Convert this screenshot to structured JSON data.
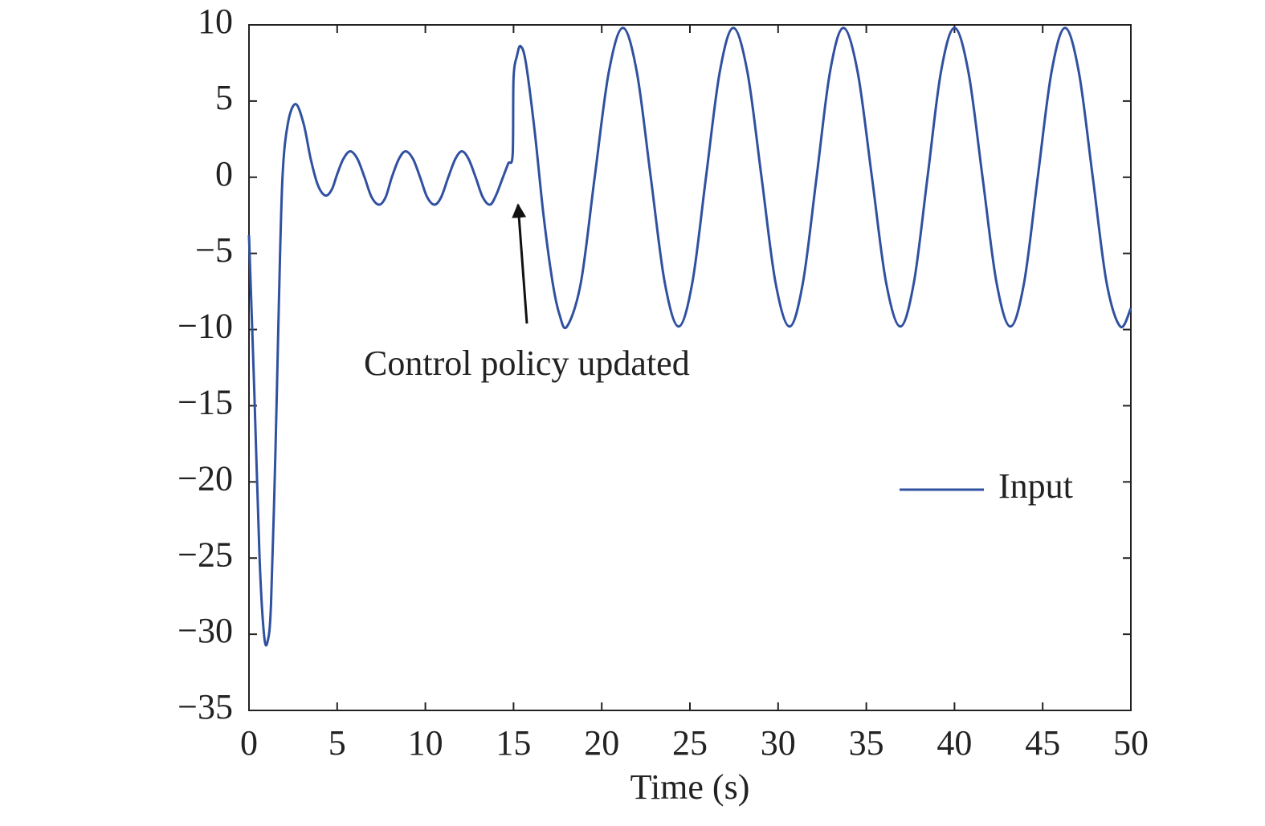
{
  "chart_data": {
    "type": "line",
    "xlabel": "Time (s)",
    "annotation": "Control policy updated",
    "legend": "right",
    "xlim": [
      0,
      50
    ],
    "ylim": [
      -35,
      10
    ],
    "xticks": [
      0,
      5,
      10,
      15,
      20,
      25,
      30,
      35,
      40,
      45,
      50
    ],
    "yticks": [
      {
        "value": -35,
        "label": "−35"
      },
      {
        "value": -30,
        "label": "−30"
      },
      {
        "value": -25,
        "label": "−25"
      },
      {
        "value": -20,
        "label": "−20"
      },
      {
        "value": -15,
        "label": "−15"
      },
      {
        "value": -10,
        "label": "−10"
      },
      {
        "value": -5,
        "label": "−5"
      },
      0,
      5,
      10
    ],
    "x": [
      0,
      0.3,
      0.6,
      0.85,
      1.05,
      1.25,
      1.5,
      1.7,
      1.9,
      2.2,
      2.64,
      3.1,
      3.5,
      3.9,
      4.33,
      4.7,
      5.0,
      5.35,
      5.74,
      6.15,
      6.55,
      6.95,
      7.38,
      7.75,
      8.1,
      8.5,
      8.88,
      9.3,
      9.7,
      10.1,
      10.52,
      10.9,
      11.3,
      11.7,
      12.07,
      12.45,
      12.85,
      13.25,
      13.66,
      14.0,
      14.4,
      14.7,
      14.95,
      15.0,
      15.2,
      15.4,
      15.7,
      16.2,
      16.7,
      17.2,
      17.6,
      18.03,
      18.82,
      19.6,
      20.4,
      21.2,
      21.99,
      22.78,
      23.57,
      24.36,
      25.14,
      25.91,
      26.69,
      27.46,
      28.26,
      29.06,
      29.85,
      30.65,
      31.41,
      32.18,
      32.94,
      33.7,
      34.51,
      35.32,
      36.12,
      36.93,
      37.7,
      38.47,
      39.23,
      40.0,
      40.79,
      41.59,
      42.38,
      43.17,
      43.95,
      44.72,
      45.5,
      46.27,
      47.05,
      47.84,
      48.62,
      49.4,
      50
    ],
    "series": [
      {
        "name": "Input",
        "color": "#3050a0",
        "values": [
          -3.8,
          -14,
          -25,
          -30,
          -30.5,
          -28,
          -18,
          -8,
          0,
          3.5,
          4.8,
          3.5,
          1.2,
          -0.5,
          -1.2,
          -0.8,
          0.2,
          1.2,
          1.7,
          1.2,
          0,
          -1.3,
          -1.8,
          -1.3,
          0,
          1.2,
          1.7,
          1.2,
          0,
          -1.3,
          -1.8,
          -1.3,
          0,
          1.2,
          1.7,
          1.2,
          0,
          -1.3,
          -1.8,
          -1.2,
          0,
          0.9,
          1.5,
          6.5,
          8.0,
          8.6,
          7.5,
          3,
          -2.5,
          -6.8,
          -9.0,
          -9.8,
          -6.9,
          0,
          6.9,
          9.8,
          6.9,
          0,
          -6.9,
          -9.8,
          -6.9,
          0,
          6.9,
          9.8,
          6.9,
          0,
          -6.9,
          -9.8,
          -6.9,
          0,
          6.9,
          9.8,
          6.9,
          0,
          -6.9,
          -9.8,
          -6.9,
          0,
          6.9,
          9.8,
          6.9,
          0,
          -6.9,
          -9.8,
          -6.9,
          0,
          6.9,
          9.8,
          6.9,
          0,
          -6.9,
          -9.8,
          -8.6
        ]
      }
    ]
  }
}
